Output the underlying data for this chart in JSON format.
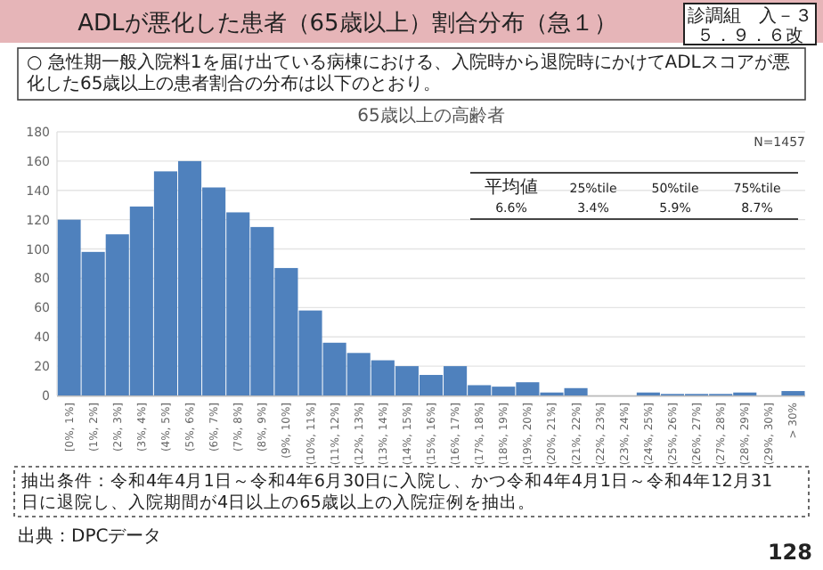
{
  "chart_data": {
    "type": "bar",
    "title": "ADLが悪化した患者（65歳以上）割合分布（急１）",
    "subtitle": "○ 急性期一般入院料1を届け出ている病棟における、入院時から退院時にかけてADLスコアが悪化した65歳以上の患者割合の分布は以下のとおり。",
    "categories": [
      "[0%, 1%]",
      "(1%, 2%]",
      "(2%, 3%]",
      "(3%, 4%]",
      "(4%, 5%]",
      "(5%, 6%]",
      "(6%, 7%]",
      "(7%, 8%]",
      "(8%, 9%]",
      "(9%, 10%]",
      "(10%, 11%]",
      "(11%, 12%]",
      "(12%, 13%]",
      "(13%, 14%]",
      "(14%, 15%]",
      "(15%, 16%]",
      "(16%, 17%]",
      "(17%, 18%]",
      "(18%, 19%]",
      "(19%, 20%]",
      "(20%, 21%]",
      "(21%, 22%]",
      "(22%, 23%]",
      "(23%, 24%]",
      "(24%, 25%]",
      "(25%, 26%]",
      "(26%, 27%]",
      "(27%, 28%]",
      "(28%, 29%]",
      "(29%, 30%]",
      "> 30%"
    ],
    "values": [
      120,
      98,
      110,
      129,
      153,
      160,
      142,
      125,
      115,
      87,
      58,
      36,
      29,
      24,
      20,
      14,
      20,
      7,
      6,
      9,
      2,
      5,
      0,
      0,
      2,
      1,
      1,
      1,
      2,
      0,
      3
    ],
    "color": "#4f81bd",
    "ylim": [
      0,
      180
    ],
    "yticks": [
      0,
      20,
      40,
      60,
      80,
      100,
      120,
      140,
      160,
      180
    ],
    "grid": "y",
    "annotations": [
      "65歳以上の高齢者",
      "N=1457",
      "平均値",
      "25%tile",
      "50%tile",
      "75%tile",
      "6.6%",
      "3.4%",
      "5.9%",
      "8.7%",
      "抽出条件：令和4年4月1日～令和4年6月30日に入院し、かつ令和4年4月1日～令和4年12月31日に退院し、入院期間が4日以上の65歳以上の入院症例を抽出。",
      "出典：DPCデータ",
      "128",
      "診調組　入－３",
      "５．９．６改"
    ]
  }
}
